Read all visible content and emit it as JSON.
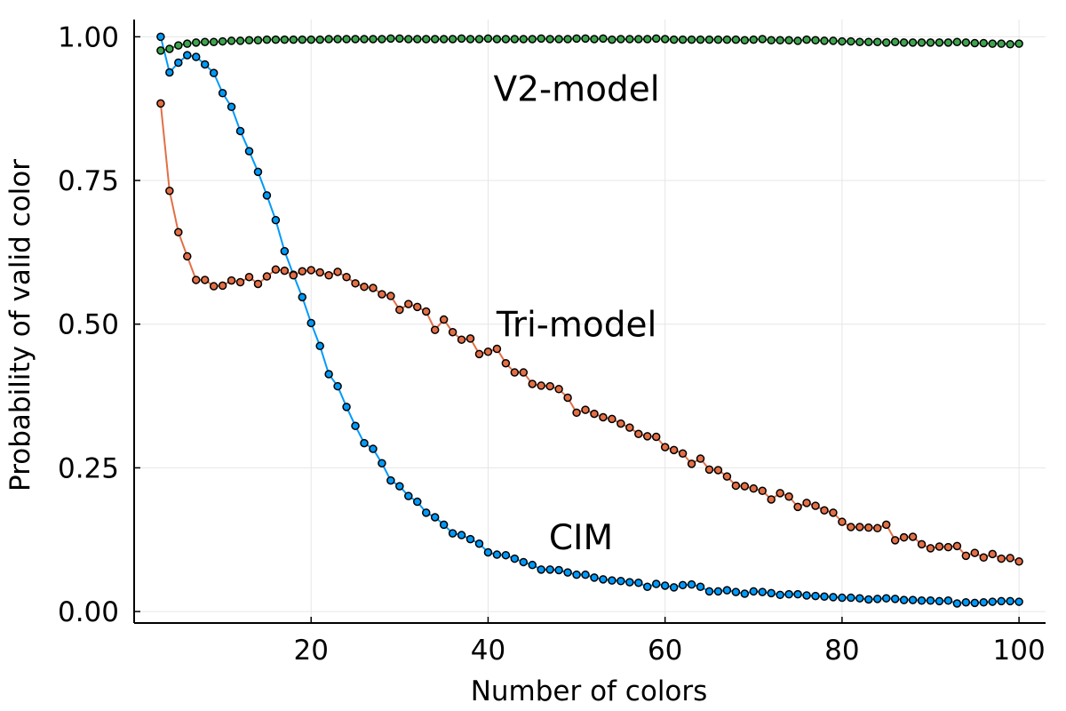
{
  "chart_data": {
    "type": "line",
    "title": "",
    "xlabel": "Number of colors",
    "ylabel": "Probability of valid color",
    "xlim": [
      0,
      103
    ],
    "ylim": [
      -0.02,
      1.03
    ],
    "xticks": [
      20,
      40,
      60,
      80,
      100
    ],
    "yticks": [
      0.0,
      0.25,
      0.5,
      0.75,
      1.0
    ],
    "xtick_labels": [
      "20",
      "40",
      "60",
      "80",
      "100"
    ],
    "ytick_labels": [
      "0.00",
      "0.25",
      "0.50",
      "0.75",
      "1.00"
    ],
    "grid": true,
    "legend": "none",
    "markers": true,
    "series": [
      {
        "name": "CIM",
        "color": "#009af9",
        "x": [
          3,
          4,
          5,
          6,
          7,
          8,
          9,
          10,
          11,
          12,
          13,
          14,
          15,
          16,
          17,
          18,
          19,
          20,
          21,
          22,
          23,
          24,
          25,
          26,
          27,
          28,
          29,
          30,
          31,
          32,
          33,
          34,
          35,
          36,
          37,
          38,
          39,
          40,
          41,
          42,
          43,
          44,
          45,
          46,
          47,
          48,
          49,
          50,
          51,
          52,
          53,
          54,
          55,
          56,
          57,
          58,
          59,
          60,
          61,
          62,
          63,
          64,
          65,
          66,
          67,
          68,
          69,
          70,
          71,
          72,
          73,
          74,
          75,
          76,
          77,
          78,
          79,
          80,
          81,
          82,
          83,
          84,
          85,
          86,
          87,
          88,
          89,
          90,
          91,
          92,
          93,
          94,
          95,
          96,
          97,
          98,
          99,
          100
        ],
        "values": [
          1.0,
          0.938,
          0.955,
          0.968,
          0.965,
          0.952,
          0.937,
          0.902,
          0.878,
          0.836,
          0.801,
          0.765,
          0.724,
          0.681,
          0.627,
          0.586,
          0.547,
          0.502,
          0.462,
          0.413,
          0.392,
          0.356,
          0.323,
          0.293,
          0.283,
          0.258,
          0.228,
          0.218,
          0.201,
          0.191,
          0.172,
          0.164,
          0.151,
          0.136,
          0.133,
          0.126,
          0.118,
          0.103,
          0.099,
          0.098,
          0.092,
          0.086,
          0.081,
          0.073,
          0.073,
          0.072,
          0.068,
          0.064,
          0.064,
          0.059,
          0.056,
          0.054,
          0.053,
          0.051,
          0.05,
          0.043,
          0.048,
          0.045,
          0.042,
          0.046,
          0.047,
          0.043,
          0.035,
          0.035,
          0.037,
          0.034,
          0.031,
          0.035,
          0.034,
          0.032,
          0.029,
          0.03,
          0.03,
          0.028,
          0.027,
          0.026,
          0.025,
          0.024,
          0.024,
          0.023,
          0.021,
          0.022,
          0.023,
          0.022,
          0.02,
          0.02,
          0.019,
          0.019,
          0.018,
          0.019,
          0.014,
          0.016,
          0.015,
          0.016,
          0.017,
          0.018,
          0.018,
          0.017
        ]
      },
      {
        "name": "Tri-model",
        "color": "#e26f46",
        "x": [
          3,
          4,
          5,
          6,
          7,
          8,
          9,
          10,
          11,
          12,
          13,
          14,
          15,
          16,
          17,
          18,
          19,
          20,
          21,
          22,
          23,
          24,
          25,
          26,
          27,
          28,
          29,
          30,
          31,
          32,
          33,
          34,
          35,
          36,
          37,
          38,
          39,
          40,
          41,
          42,
          43,
          44,
          45,
          46,
          47,
          48,
          49,
          50,
          51,
          52,
          53,
          54,
          55,
          56,
          57,
          58,
          59,
          60,
          61,
          62,
          63,
          64,
          65,
          66,
          67,
          68,
          69,
          70,
          71,
          72,
          73,
          74,
          75,
          76,
          77,
          78,
          79,
          80,
          81,
          82,
          83,
          84,
          85,
          86,
          87,
          88,
          89,
          90,
          91,
          92,
          93,
          94,
          95,
          96,
          97,
          98,
          99,
          100
        ],
        "values": [
          0.884,
          0.732,
          0.66,
          0.618,
          0.577,
          0.577,
          0.566,
          0.567,
          0.576,
          0.573,
          0.582,
          0.57,
          0.583,
          0.595,
          0.593,
          0.585,
          0.592,
          0.594,
          0.59,
          0.585,
          0.591,
          0.582,
          0.571,
          0.565,
          0.563,
          0.552,
          0.549,
          0.525,
          0.535,
          0.53,
          0.522,
          0.49,
          0.508,
          0.486,
          0.473,
          0.475,
          0.448,
          0.452,
          0.457,
          0.432,
          0.416,
          0.416,
          0.396,
          0.393,
          0.392,
          0.387,
          0.372,
          0.346,
          0.351,
          0.344,
          0.338,
          0.335,
          0.327,
          0.32,
          0.309,
          0.305,
          0.304,
          0.286,
          0.281,
          0.275,
          0.257,
          0.266,
          0.247,
          0.246,
          0.235,
          0.219,
          0.218,
          0.214,
          0.21,
          0.195,
          0.206,
          0.2,
          0.182,
          0.189,
          0.184,
          0.176,
          0.172,
          0.156,
          0.147,
          0.147,
          0.146,
          0.145,
          0.151,
          0.124,
          0.129,
          0.13,
          0.117,
          0.11,
          0.113,
          0.112,
          0.114,
          0.097,
          0.102,
          0.094,
          0.1,
          0.092,
          0.093,
          0.087
        ]
      },
      {
        "name": "V2-model",
        "color": "#3ea44e",
        "x": [
          3,
          4,
          5,
          6,
          7,
          8,
          9,
          10,
          11,
          12,
          13,
          14,
          15,
          16,
          17,
          18,
          19,
          20,
          21,
          22,
          23,
          24,
          25,
          26,
          27,
          28,
          29,
          30,
          31,
          32,
          33,
          34,
          35,
          36,
          37,
          38,
          39,
          40,
          41,
          42,
          43,
          44,
          45,
          46,
          47,
          48,
          49,
          50,
          51,
          52,
          53,
          54,
          55,
          56,
          57,
          58,
          59,
          60,
          61,
          62,
          63,
          64,
          65,
          66,
          67,
          68,
          69,
          70,
          71,
          72,
          73,
          74,
          75,
          76,
          77,
          78,
          79,
          80,
          81,
          82,
          83,
          84,
          85,
          86,
          87,
          88,
          89,
          90,
          91,
          92,
          93,
          94,
          95,
          96,
          97,
          98,
          99,
          100
        ],
        "values": [
          0.976,
          0.979,
          0.985,
          0.988,
          0.99,
          0.991,
          0.991,
          0.992,
          0.993,
          0.993,
          0.994,
          0.994,
          0.995,
          0.995,
          0.995,
          0.995,
          0.995,
          0.995,
          0.995,
          0.996,
          0.996,
          0.996,
          0.996,
          0.996,
          0.996,
          0.996,
          0.997,
          0.997,
          0.996,
          0.996,
          0.996,
          0.996,
          0.996,
          0.996,
          0.997,
          0.996,
          0.996,
          0.997,
          0.996,
          0.996,
          0.996,
          0.996,
          0.996,
          0.997,
          0.996,
          0.996,
          0.996,
          0.997,
          0.997,
          0.996,
          0.997,
          0.995,
          0.996,
          0.996,
          0.996,
          0.996,
          0.997,
          0.996,
          0.995,
          0.995,
          0.995,
          0.995,
          0.995,
          0.995,
          0.995,
          0.995,
          0.994,
          0.995,
          0.996,
          0.994,
          0.994,
          0.994,
          0.993,
          0.995,
          0.994,
          0.993,
          0.993,
          0.992,
          0.992,
          0.991,
          0.991,
          0.991,
          0.99,
          0.991,
          0.99,
          0.99,
          0.99,
          0.99,
          0.99,
          0.99,
          0.991,
          0.99,
          0.989,
          0.989,
          0.988,
          0.988,
          0.987,
          0.988
        ]
      }
    ],
    "annotations": [
      {
        "text": "V2-model",
        "x": 50,
        "y": 0.91
      },
      {
        "text": "Tri-model",
        "x": 50,
        "y": 0.5
      },
      {
        "text": "CIM",
        "x": 50.5,
        "y": 0.13
      }
    ]
  }
}
